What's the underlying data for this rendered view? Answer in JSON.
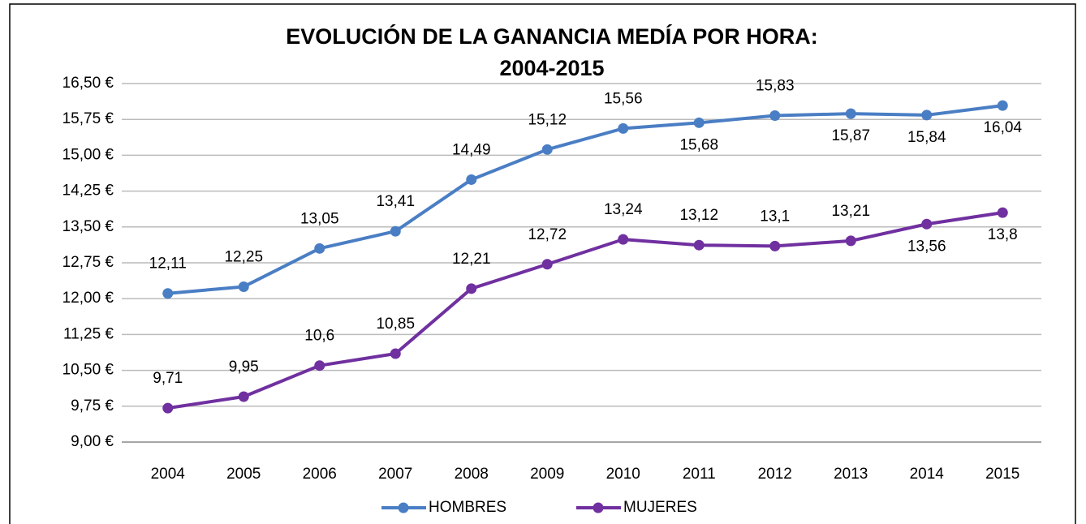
{
  "chart_data": {
    "type": "line",
    "title": [
      "EVOLUCIÓN DE LA GANANCIA MEDÍA POR HORA:",
      "2004-2015"
    ],
    "categories": [
      "2004",
      "2005",
      "2006",
      "2007",
      "2008",
      "2009",
      "2010",
      "2011",
      "2012",
      "2013",
      "2014",
      "2015"
    ],
    "series": [
      {
        "name": "HOMBRES",
        "color": "#4a7ec4",
        "values": [
          12.11,
          12.25,
          13.05,
          13.41,
          14.49,
          15.12,
          15.56,
          15.68,
          15.83,
          15.87,
          15.84,
          16.04
        ],
        "value_labels": [
          "12,11",
          "12,25",
          "13,05",
          "13,41",
          "14,49",
          "15,12",
          "15,56",
          "15,68",
          "15,83",
          "15,87",
          "15,84",
          "16,04"
        ]
      },
      {
        "name": "MUJERES",
        "color": "#7030a0",
        "values": [
          9.71,
          9.95,
          10.6,
          10.85,
          12.21,
          12.72,
          13.24,
          13.12,
          13.1,
          13.21,
          13.56,
          13.8
        ],
        "value_labels": [
          "9,71",
          "9,95",
          "10,6",
          "10,85",
          "12,21",
          "12,72",
          "13,24",
          "13,12",
          "13,1",
          "13,21",
          "13,56",
          "13,8"
        ]
      }
    ],
    "ylim": [
      9,
      16.5
    ],
    "yticks": [
      {
        "value": 9,
        "label": "9,00 €"
      },
      {
        "value": 9.75,
        "label": "9,75 €"
      },
      {
        "value": 10.5,
        "label": "10,50 €"
      },
      {
        "value": 11.25,
        "label": "11,25 €"
      },
      {
        "value": 12,
        "label": "12,00 €"
      },
      {
        "value": 12.75,
        "label": "12,75 €"
      },
      {
        "value": 13.5,
        "label": "13,50 €"
      },
      {
        "value": 14.25,
        "label": "14,25 €"
      },
      {
        "value": 15,
        "label": "15,00 €"
      },
      {
        "value": 15.75,
        "label": "15,75 €"
      },
      {
        "value": 16.5,
        "label": "16,50 €"
      }
    ],
    "grid": true
  }
}
